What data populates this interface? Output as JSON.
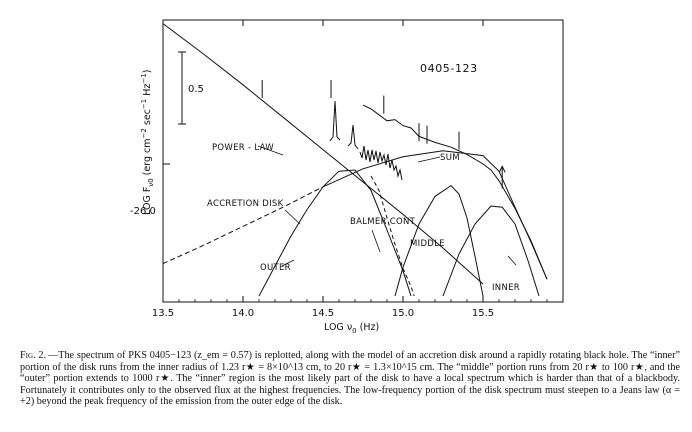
{
  "figure": {
    "object_label": "0405-123",
    "y_axis_label": "LOG F",
    "y_axis_label_sub": "ν0",
    "y_axis_label_units": "(erg cm",
    "y_axis_label_exp1": "−2",
    "y_axis_label_mid": " sec",
    "y_axis_label_exp2": "−1",
    "y_axis_label_mid2": " Hz",
    "y_axis_label_exp3": "−1",
    "y_axis_label_end": ")",
    "x_axis_label": "LOG ν",
    "x_axis_label_sub": "0",
    "x_axis_label_units": " (Hz)",
    "y_reference_tick_label": "-26.0",
    "scale_bar_label": "0.5",
    "annotations": {
      "power_law": "POWER - LAW",
      "sum": "SUM",
      "accretion_disk": "ACCRETION DISK",
      "balmer_cont": "BALMER CONT",
      "middle": "MIDDLE",
      "outer": "OUTER",
      "inner": "INNER"
    }
  },
  "chart_data": {
    "type": "line",
    "title": "0405-123",
    "xlabel": "LOG ν0 (Hz)",
    "ylabel": "LOG Fν0 (erg cm−2 sec−1 Hz−1)",
    "xlim": [
      13.5,
      16.0
    ],
    "ylim": [
      -27.15,
      -24.8
    ],
    "x_ticks": [
      13.5,
      14.0,
      14.5,
      15.0,
      15.5
    ],
    "y_reference_tick": -26.0,
    "y_scale_bar_length": 0.5,
    "grid": false,
    "series": [
      {
        "name": "POWER - LAW",
        "x": [
          13.5,
          13.75,
          14.0,
          14.25,
          14.5,
          14.75,
          15.0,
          15.25,
          15.5
        ],
        "y": [
          -24.83,
          -25.08,
          -25.34,
          -25.61,
          -25.88,
          -26.15,
          -26.42,
          -26.7,
          -27.0
        ]
      },
      {
        "name": "SUM",
        "x": [
          14.75,
          14.8,
          14.85,
          14.9,
          14.95,
          15.0,
          15.05,
          15.1,
          15.2,
          15.3,
          15.4,
          15.5,
          15.55,
          15.6,
          15.7,
          15.8,
          15.9
        ],
        "y": [
          -25.51,
          -25.54,
          -25.59,
          -25.64,
          -25.63,
          -25.68,
          -25.7,
          -25.77,
          -25.82,
          -25.86,
          -25.92,
          -26.0,
          -26.05,
          -26.14,
          -26.37,
          -26.64,
          -26.96
        ]
      },
      {
        "name": "ACCRETION DISK",
        "x": [
          13.5,
          13.75,
          14.0,
          14.25,
          14.5,
          14.75,
          15.0,
          15.25,
          15.5,
          15.6,
          15.7,
          15.8,
          15.9
        ],
        "y": [
          -26.83,
          -26.68,
          -26.52,
          -26.36,
          -26.19,
          -26.04,
          -25.94,
          -25.89,
          -25.93,
          -26.06,
          -26.36,
          -26.65,
          -26.96
        ]
      },
      {
        "name": "BALMER CONT",
        "x": [
          14.8,
          14.85,
          14.9,
          14.95,
          15.0,
          15.05,
          15.07
        ],
        "y": [
          -26.1,
          -26.22,
          -26.45,
          -26.67,
          -26.87,
          -27.02,
          -27.1
        ]
      },
      {
        "name": "OUTER",
        "x": [
          14.1,
          14.2,
          14.3,
          14.4,
          14.5,
          14.6,
          14.7,
          14.8,
          14.9,
          15.0,
          15.05
        ],
        "y": [
          -27.1,
          -26.85,
          -26.6,
          -26.38,
          -26.19,
          -26.06,
          -26.05,
          -26.22,
          -26.55,
          -26.89,
          -27.1
        ]
      },
      {
        "name": "MIDDLE",
        "x": [
          14.95,
          15.0,
          15.1,
          15.2,
          15.3,
          15.35,
          15.4,
          15.45,
          15.5
        ],
        "y": [
          -27.1,
          -26.86,
          -26.5,
          -26.27,
          -26.18,
          -26.25,
          -26.45,
          -26.77,
          -27.1
        ]
      },
      {
        "name": "INNER",
        "x": [
          15.25,
          15.35,
          15.45,
          15.55,
          15.62,
          15.7,
          15.78,
          15.85
        ],
        "y": [
          -27.1,
          -26.75,
          -26.5,
          -26.35,
          -26.36,
          -26.5,
          -26.8,
          -27.1
        ]
      }
    ],
    "data_points": {
      "x": [
        14.12,
        14.55,
        14.88,
        15.1,
        15.15,
        15.35
      ],
      "y": [
        -25.4,
        -25.4,
        -25.53,
        -25.76,
        -25.78,
        -25.83
      ]
    },
    "upper_limit_arrow": {
      "x": 15.62,
      "y": -26.02
    }
  },
  "caption": {
    "label": "Fig. 2.",
    "text": "—The spectrum of PKS 0405−123 (z_em = 0.57) is replotted, along with the model of an accretion disk around a rapidly rotating black hole. The “inner” portion of the disk runs from the inner radius of 1.23 r★ = 8×10^13 cm, to 20 r★ = 1.3×10^15 cm. The “middle” portion runs from 20 r★ to 100 r★, and the “outer” portion extends to 1000 r★. The “inner” region is the most likely part of the disk to have a local spectrum which is harder than that of a blackbody. Fortunately it contributes only to the observed flux at the highest frequencies. The low-frequency portion of the disk spectrum must steepen to a Jeans law (α = +2) beyond the peak frequency of the emission from the outer edge of the disk."
  }
}
